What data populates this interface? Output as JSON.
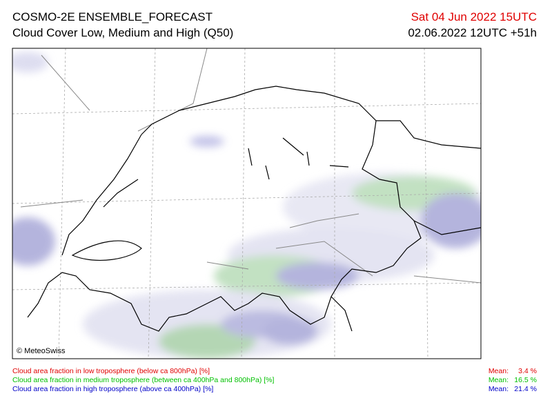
{
  "header": {
    "title": "COSMO-2E ENSEMBLE_FORECAST",
    "subtitle": "Cloud Cover Low, Medium and High (Q50)",
    "valid_time": "Sat 04 Jun 2022 15UTC",
    "run_time": "02.06.2022 12UTC +51h"
  },
  "map": {
    "credit": "© MeteoSwiss"
  },
  "legend": [
    {
      "label": "Cloud area fraction in low troposphere (below ca 800hPa) [%]",
      "mean_label": "Mean:",
      "mean": "3.4 %",
      "color": "#e00000"
    },
    {
      "label": "Cloud area fraction in medium troposphere (between ca 400hPa and 800hPa) [%]",
      "mean_label": "Mean:",
      "mean": "16.5 %",
      "color": "#00c000"
    },
    {
      "label": "Cloud area fraction in high troposphere (above ca 400hPa) [%]",
      "mean_label": "Mean:",
      "mean": "21.4 %",
      "color": "#0000c8"
    }
  ]
}
